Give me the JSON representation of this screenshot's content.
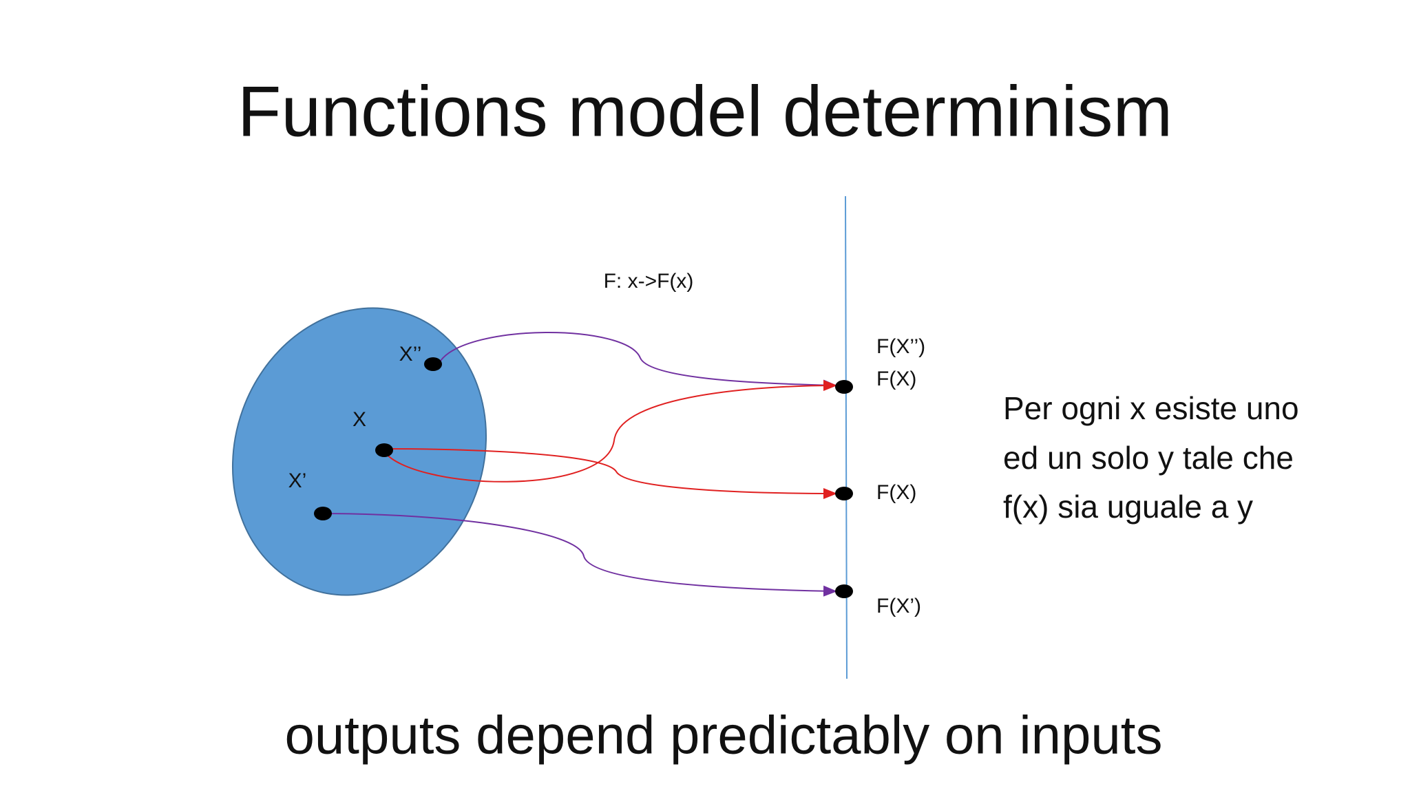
{
  "title": "Functions model determinism",
  "function_label": "F: x->F(x)",
  "inputs": [
    {
      "label": "X’’"
    },
    {
      "label": "X"
    },
    {
      "label": "X’"
    }
  ],
  "outputs": [
    {
      "label": "F(X’’)"
    },
    {
      "label": "F(X)"
    },
    {
      "label": "F(X)"
    },
    {
      "label": "F(X’)"
    }
  ],
  "definition": [
    "Per ogni x esiste uno",
    "ed un solo y tale che",
    "f(x) sia uguale a y"
  ],
  "caption": "outputs depend predictably on inputs"
}
